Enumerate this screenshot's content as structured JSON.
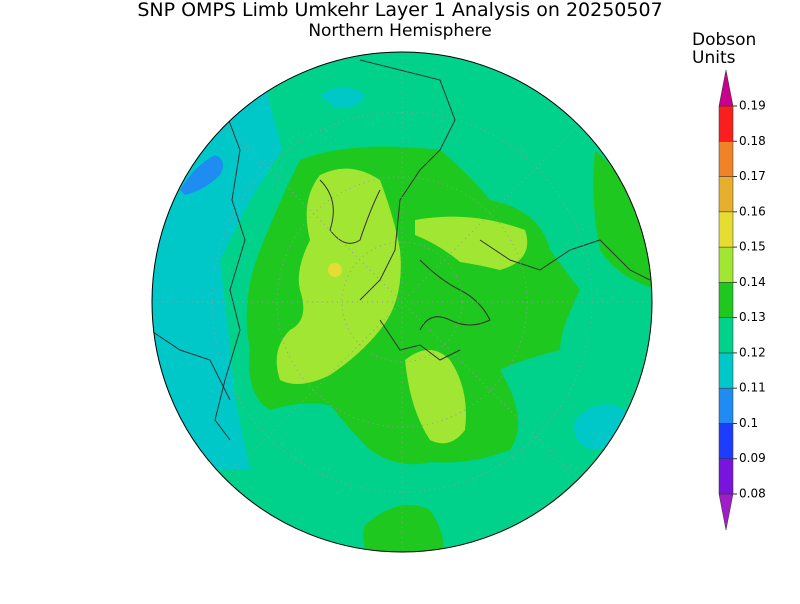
{
  "header": {
    "title": "SNP OMPS Limb Umkehr Layer 1 Analysis on 20250507",
    "subtitle": "Northern Hemisphere"
  },
  "colorbar": {
    "label": [
      "Dobson",
      "Units"
    ],
    "ticks": [
      0.08,
      0.09,
      0.1,
      0.11,
      0.12,
      0.13,
      0.14,
      0.15,
      0.16,
      0.17,
      0.18,
      0.19
    ],
    "colors": [
      "#a01ec8",
      "#7814dc",
      "#1e3cff",
      "#1e8cf0",
      "#00c8c8",
      "#00d28c",
      "#1ec81e",
      "#a0e632",
      "#e6dc32",
      "#e6af2d",
      "#f08228",
      "#fa1e1e",
      "#c8008c"
    ]
  }
}
